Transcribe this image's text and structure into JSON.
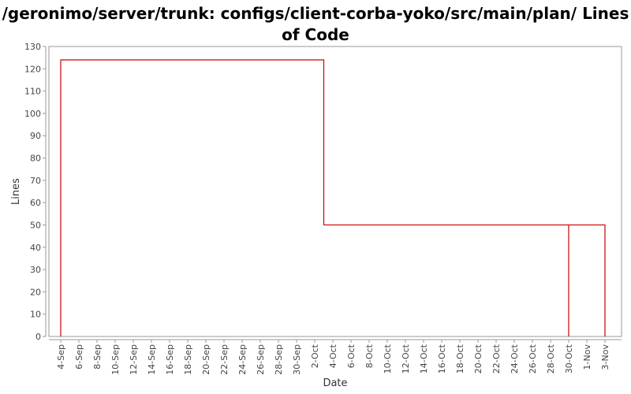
{
  "chart_data": {
    "type": "line",
    "step": true,
    "title": "/geronimo/server/trunk: configs/client-corba-yoko/src/main/plan/ Lines of Code",
    "xlabel": "Date",
    "ylabel": "Lines",
    "ylim": [
      0,
      130
    ],
    "y_ticks": [
      0,
      10,
      20,
      30,
      40,
      50,
      60,
      70,
      80,
      90,
      100,
      110,
      120,
      130
    ],
    "x_ticks": [
      "4-Sep",
      "6-Sep",
      "8-Sep",
      "10-Sep",
      "12-Sep",
      "14-Sep",
      "16-Sep",
      "18-Sep",
      "20-Sep",
      "22-Sep",
      "24-Sep",
      "26-Sep",
      "28-Sep",
      "30-Sep",
      "2-Oct",
      "4-Oct",
      "6-Oct",
      "8-Oct",
      "10-Oct",
      "12-Oct",
      "14-Oct",
      "16-Oct",
      "18-Oct",
      "20-Oct",
      "22-Oct",
      "24-Oct",
      "26-Oct",
      "28-Oct",
      "30-Oct",
      "1-Nov",
      "3-Nov"
    ],
    "grid": false,
    "legend": "none",
    "series_color": "#cc0000",
    "series": [
      {
        "x": [
          "4-Sep",
          "4-Sep",
          "3-Oct",
          "3-Oct",
          "30-Oct",
          "30-Oct",
          "30-Oct",
          "3-Nov",
          "3-Nov"
        ],
        "y": [
          0,
          124,
          124,
          50,
          50,
          0,
          50,
          50,
          0
        ]
      }
    ]
  }
}
